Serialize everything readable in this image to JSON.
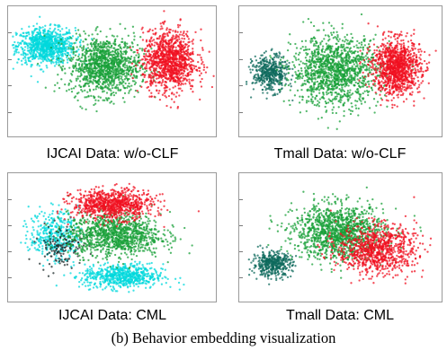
{
  "caption": "(b) Behavior embedding visualization",
  "chart_data": [
    {
      "type": "scatter",
      "title": "IJCAI Data: w/o-CLF",
      "grid": false,
      "legend": "none",
      "series": [
        {
          "color": "#00d8dc",
          "clusters": [
            {
              "cx": -0.66,
              "cy": 0.42,
              "sx": 0.26,
              "sy": 0.26,
              "n": 900
            }
          ]
        },
        {
          "color": "#18a038",
          "clusters": [
            {
              "cx": -0.08,
              "cy": 0.1,
              "sx": 0.32,
              "sy": 0.42,
              "n": 1200
            }
          ]
        },
        {
          "color": "#f01020",
          "clusters": [
            {
              "cx": 0.56,
              "cy": 0.18,
              "sx": 0.24,
              "sy": 0.44,
              "n": 1100
            }
          ]
        }
      ]
    },
    {
      "type": "scatter",
      "title": "Tmall Data: w/o-CLF",
      "grid": false,
      "legend": "none",
      "series": [
        {
          "color": "#0d6a5c",
          "clusters": [
            {
              "cx": -0.72,
              "cy": -0.02,
              "sx": 0.16,
              "sy": 0.26,
              "n": 450
            }
          ]
        },
        {
          "color": "#18a038",
          "clusters": [
            {
              "cx": -0.06,
              "cy": 0.02,
              "sx": 0.4,
              "sy": 0.5,
              "n": 1300
            }
          ]
        },
        {
          "color": "#f01020",
          "clusters": [
            {
              "cx": 0.56,
              "cy": 0.08,
              "sx": 0.22,
              "sy": 0.4,
              "n": 1100
            }
          ]
        }
      ]
    },
    {
      "type": "scatter",
      "title": "IJCAI Data: CML",
      "grid": false,
      "legend": "none",
      "series": [
        {
          "color": "#00d8dc",
          "clusters": [
            {
              "cx": -0.58,
              "cy": 0.06,
              "sx": 0.22,
              "sy": 0.36,
              "n": 380
            },
            {
              "cx": 0.1,
              "cy": -0.62,
              "sx": 0.36,
              "sy": 0.18,
              "n": 650
            }
          ]
        },
        {
          "color": "#1c2a2a",
          "clusters": [
            {
              "cx": -0.52,
              "cy": -0.12,
              "sx": 0.2,
              "sy": 0.3,
              "n": 140
            }
          ]
        },
        {
          "color": "#18a038",
          "clusters": [
            {
              "cx": 0.02,
              "cy": 0.06,
              "sx": 0.42,
              "sy": 0.32,
              "n": 1100
            }
          ]
        },
        {
          "color": "#f01020",
          "clusters": [
            {
              "cx": 0.0,
              "cy": 0.55,
              "sx": 0.36,
              "sy": 0.22,
              "n": 850
            }
          ]
        }
      ]
    },
    {
      "type": "scatter",
      "title": "Tmall Data: CML",
      "grid": false,
      "legend": "none",
      "series": [
        {
          "color": "#0d6a5c",
          "clusters": [
            {
              "cx": -0.7,
              "cy": -0.42,
              "sx": 0.18,
              "sy": 0.18,
              "n": 420
            }
          ]
        },
        {
          "color": "#18a038",
          "clusters": [
            {
              "cx": -0.02,
              "cy": 0.1,
              "sx": 0.42,
              "sy": 0.4,
              "n": 1300
            }
          ]
        },
        {
          "color": "#f01020",
          "clusters": [
            {
              "cx": 0.36,
              "cy": -0.18,
              "sx": 0.36,
              "sy": 0.36,
              "n": 900
            }
          ]
        }
      ]
    }
  ]
}
